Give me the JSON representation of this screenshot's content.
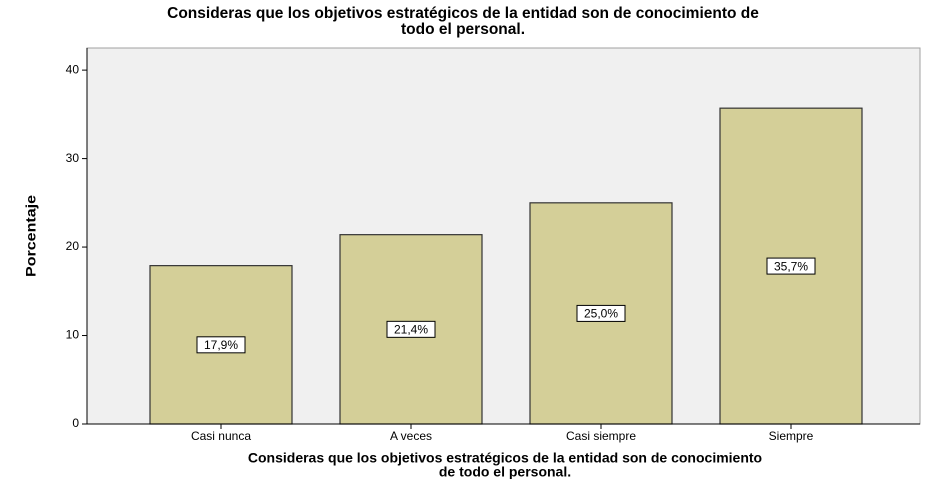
{
  "chart_data": {
    "type": "bar",
    "title": [
      "Consideras que los objetivos estratégicos de la entidad son de conocimiento de",
      "todo el personal."
    ],
    "x_label": [
      "Consideras que los objetivos estratégicos de la entidad son de conocimiento",
      "de todo el personal."
    ],
    "y_label": "Porcentaje",
    "categories": [
      "Casi nunca",
      "A veces",
      "Casi siempre",
      "Siempre"
    ],
    "values": [
      17.9,
      21.4,
      25.0,
      35.7
    ],
    "value_labels": [
      "17,9%",
      "21,4%",
      "25,0%",
      "35,7%"
    ],
    "color": "#d4cf98",
    "ylim": [
      0,
      42.5
    ],
    "yticks": [
      0,
      10,
      20,
      30,
      40
    ],
    "grid": false
  }
}
